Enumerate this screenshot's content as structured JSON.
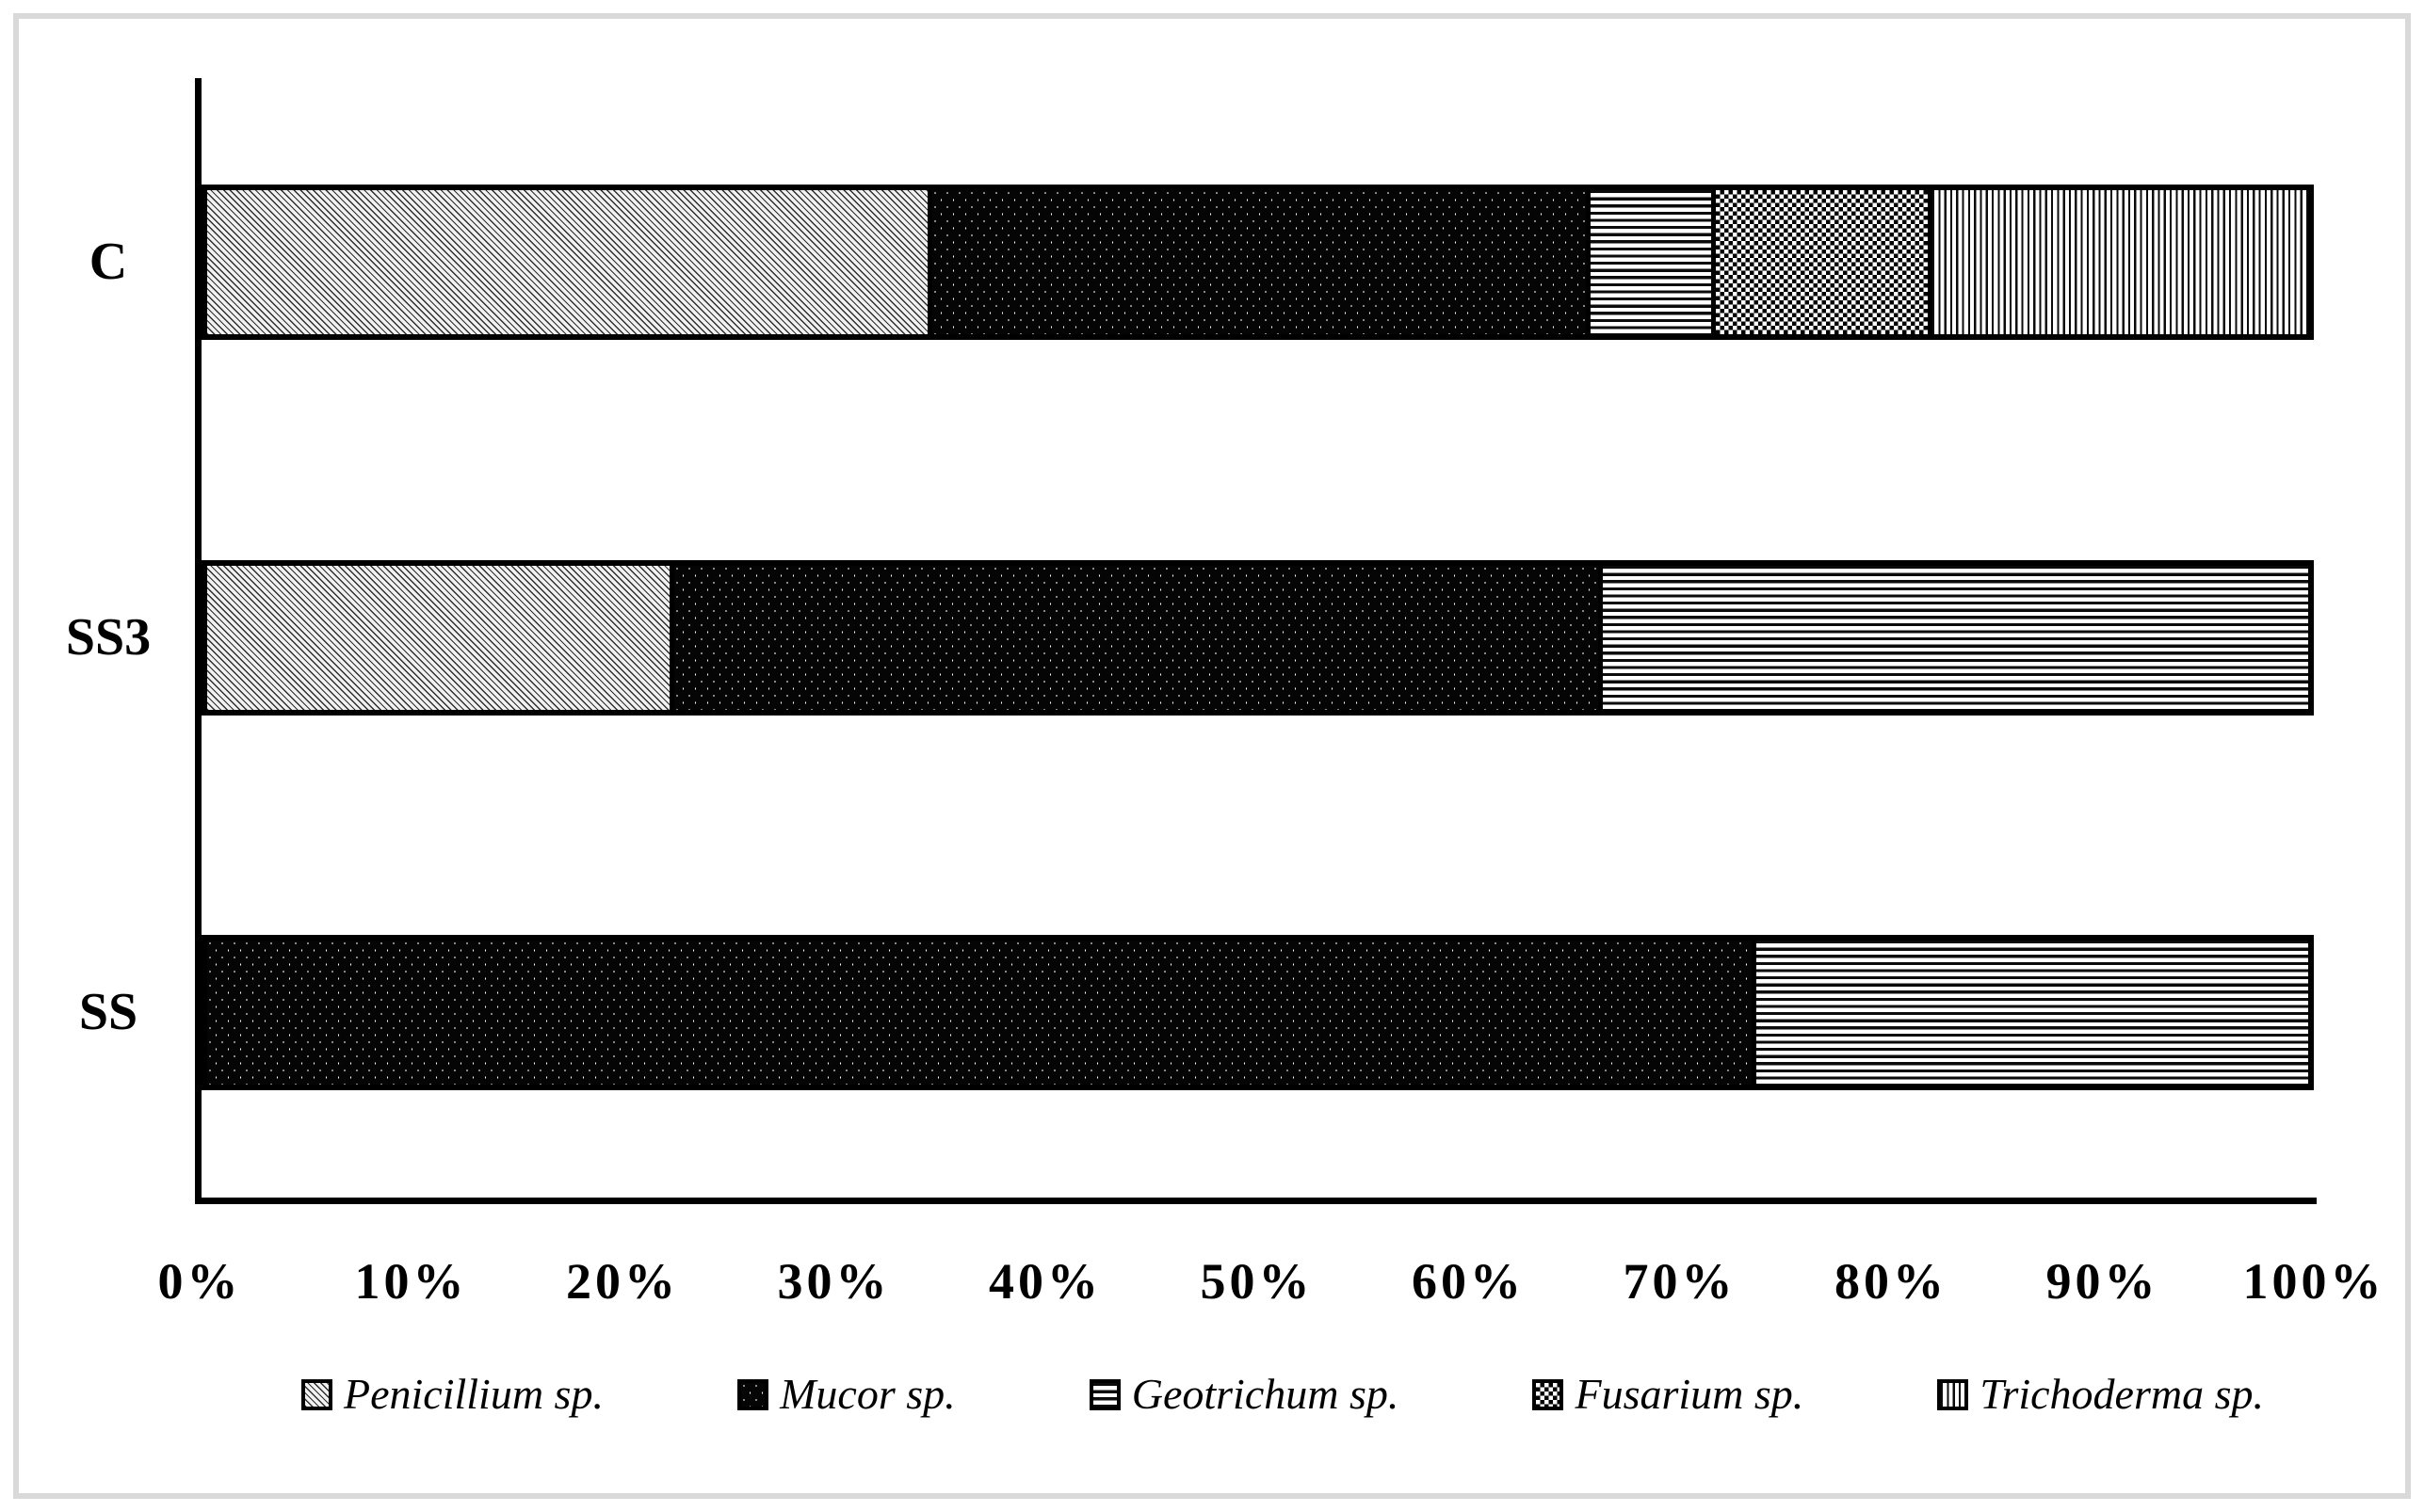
{
  "chart_data": {
    "type": "bar",
    "orientation": "horizontal",
    "stacked": true,
    "unit": "%",
    "title": "",
    "grid": false,
    "categories": [
      "C",
      "SS3",
      "SS"
    ],
    "series": [
      {
        "name": "Penicillium sp.",
        "pattern": "penicillium",
        "swatch_style": "light-diagonal-hatch",
        "values": [
          34.3,
          22.0,
          0
        ]
      },
      {
        "name": "Mucor sp.",
        "pattern": "mucor",
        "swatch_style": "black-with-white-dots",
        "values": [
          31.3,
          44.2,
          73.5
        ]
      },
      {
        "name": "Geotrichum sp.",
        "pattern": "geotrichum",
        "swatch_style": "horizontal-stripes",
        "values": [
          6.0,
          33.8,
          26.5
        ]
      },
      {
        "name": "Fusarium sp.",
        "pattern": "fusarium",
        "swatch_style": "checkerboard-hatch",
        "values": [
          10.3,
          0,
          0
        ]
      },
      {
        "name": "Trichoderma sp.",
        "pattern": "trichoderma",
        "swatch_style": "vertical-stripes",
        "values": [
          18.1,
          0,
          0
        ]
      }
    ],
    "x_axis": {
      "range": [
        0,
        100
      ],
      "tick_interval": 10,
      "tick_labels": [
        "0%",
        "10%",
        "20%",
        "30%",
        "40%",
        "50%",
        "60%",
        "70%",
        "80%",
        "90%",
        "100%"
      ]
    },
    "y_axis": {
      "labels": [
        "C",
        "SS3",
        "SS"
      ]
    },
    "legend_position": "bottom",
    "legend": [
      "Penicillium sp.",
      "Mucor sp.",
      "Geotrichum sp.",
      "Fusarium sp.",
      "Trichoderma sp."
    ]
  },
  "colors": {
    "ink": "#000000",
    "background": "#ffffff",
    "frame_border": "#d9d9d9"
  }
}
